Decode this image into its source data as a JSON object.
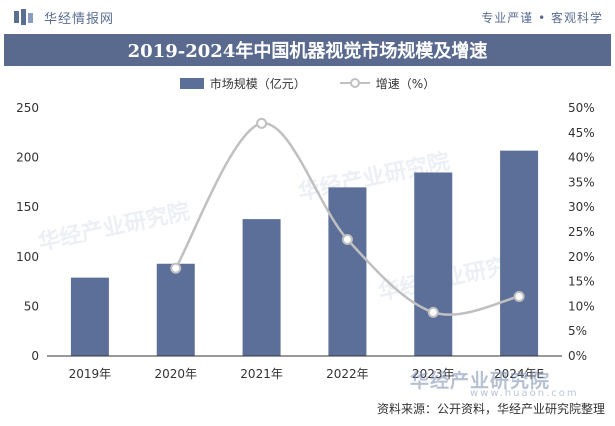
{
  "brand": {
    "name": "华经情报网",
    "slogan": "专业严谨 • 客观科学"
  },
  "source": "资料来源：公开资料，华经产业研究院整理",
  "watermark": {
    "text": "华经产业研究院",
    "url": "www.huaon.com"
  },
  "colors": {
    "bar": "#5c6f98",
    "line": "#c0c0c0",
    "title_bg": "#5a6a8f",
    "brand": "#5a6e93"
  },
  "chart_data": {
    "type": "bar",
    "title": "2019-2024年中国机器视觉市场规模及增速",
    "categories": [
      "2019年",
      "2020年",
      "2021年",
      "2022年",
      "2023年",
      "2024年E"
    ],
    "series": [
      {
        "name": "市场规模（亿元）",
        "type": "bar",
        "axis": "left",
        "values": [
          79,
          93,
          138,
          170,
          185,
          207
        ]
      },
      {
        "name": "增速（%）",
        "type": "line",
        "smooth": true,
        "axis": "right",
        "values": [
          null,
          17.7,
          46.9,
          23.5,
          8.8,
          12.0
        ]
      }
    ],
    "y_left": {
      "min": 0,
      "max": 250,
      "ticks": [
        "0",
        "50",
        "100",
        "150",
        "200",
        "250"
      ]
    },
    "y_right": {
      "min": 0,
      "max": 50,
      "ticks": [
        "0%",
        "5%",
        "10%",
        "15%",
        "20%",
        "25%",
        "30%",
        "35%",
        "40%",
        "45%",
        "50%"
      ]
    },
    "legend": "top-center",
    "grid": false
  }
}
